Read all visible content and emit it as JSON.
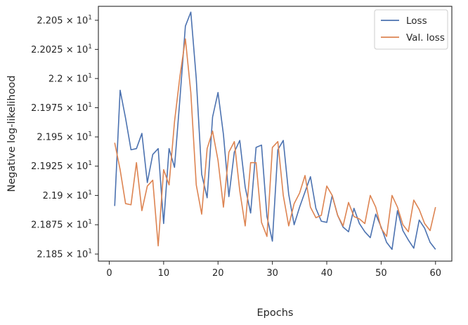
{
  "chart_data": {
    "type": "line",
    "xlabel": "Epochs",
    "ylabel": "Negative log-likelihood",
    "xlim": [
      -2,
      63
    ],
    "ylim": [
      21.844,
      22.062
    ],
    "yscale": "log",
    "grid": false,
    "legend_placement": "top-right",
    "xticks": [
      0,
      10,
      20,
      30,
      40,
      50,
      60
    ],
    "xtick_labels": [
      "0",
      "10",
      "20",
      "30",
      "40",
      "50",
      "60"
    ],
    "yticks": [
      {
        "value": 22.05,
        "mantissa": "2.205",
        "exp": "1"
      },
      {
        "value": 22.025,
        "mantissa": "2.2025",
        "exp": "1"
      },
      {
        "value": 22.0,
        "mantissa": "2.2",
        "exp": "1"
      },
      {
        "value": 21.975,
        "mantissa": "2.1975",
        "exp": "1"
      },
      {
        "value": 21.95,
        "mantissa": "2.195",
        "exp": "1"
      },
      {
        "value": 21.925,
        "mantissa": "2.1925",
        "exp": "1"
      },
      {
        "value": 21.9,
        "mantissa": "2.19",
        "exp": "1"
      },
      {
        "value": 21.875,
        "mantissa": "2.1875",
        "exp": "1"
      },
      {
        "value": 21.85,
        "mantissa": "2.185",
        "exp": "1"
      }
    ],
    "times_symbol": "×",
    "ytick_base": "10",
    "x": [
      1,
      2,
      3,
      4,
      5,
      6,
      7,
      8,
      9,
      10,
      11,
      12,
      13,
      14,
      15,
      16,
      17,
      18,
      19,
      20,
      21,
      22,
      23,
      24,
      25,
      26,
      27,
      28,
      29,
      30,
      31,
      32,
      33,
      34,
      35,
      36,
      37,
      38,
      39,
      40,
      41,
      42,
      43,
      44,
      45,
      46,
      47,
      48,
      49,
      50,
      51,
      52,
      53,
      54,
      55,
      56,
      57,
      58,
      59,
      60
    ],
    "series": [
      {
        "name": "Loss",
        "color": "#4c72b0",
        "values": [
          21.891,
          21.99,
          21.966,
          21.939,
          21.94,
          21.953,
          21.911,
          21.935,
          21.94,
          21.876,
          21.94,
          21.924,
          21.983,
          22.045,
          22.057,
          22.0,
          21.918,
          21.898,
          21.967,
          21.988,
          21.952,
          21.899,
          21.937,
          21.947,
          21.907,
          21.885,
          21.941,
          21.943,
          21.882,
          21.861,
          21.939,
          21.947,
          21.901,
          21.875,
          21.89,
          21.903,
          21.916,
          21.889,
          21.878,
          21.877,
          21.9,
          21.883,
          21.873,
          21.869,
          21.889,
          21.876,
          21.869,
          21.864,
          21.884,
          21.873,
          21.86,
          21.854,
          21.887,
          21.87,
          21.862,
          21.855,
          21.879,
          21.872,
          21.86,
          21.854
        ]
      },
      {
        "name": "Val. loss",
        "color": "#dd8452",
        "values": [
          21.945,
          21.922,
          21.893,
          21.892,
          21.928,
          21.887,
          21.908,
          21.913,
          21.857,
          21.922,
          21.909,
          21.963,
          22.002,
          22.034,
          21.988,
          21.909,
          21.884,
          21.94,
          21.955,
          21.93,
          21.89,
          21.937,
          21.946,
          21.904,
          21.874,
          21.928,
          21.928,
          21.877,
          21.865,
          21.941,
          21.946,
          21.9,
          21.874,
          21.893,
          21.902,
          21.917,
          21.89,
          21.881,
          21.883,
          21.908,
          21.9,
          21.883,
          21.874,
          21.894,
          21.882,
          21.88,
          21.876,
          21.9,
          21.89,
          21.872,
          21.865,
          21.9,
          21.89,
          21.875,
          21.869,
          21.896,
          21.888,
          21.876,
          21.87,
          21.89
        ]
      }
    ]
  }
}
